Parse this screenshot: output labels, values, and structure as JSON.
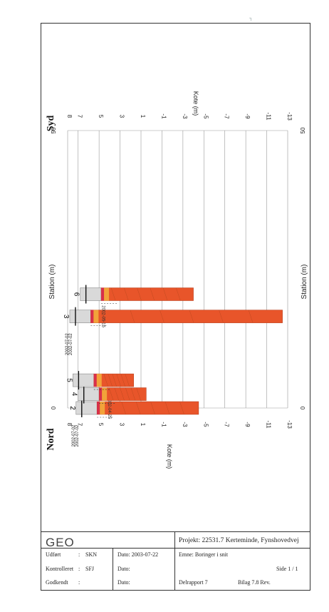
{
  "chart_data": {
    "type": "borehole-section",
    "left_label": "Nord",
    "right_label": "Syd",
    "station_axis_title": "Station (m)",
    "kote_axis_title": "Kote (m)",
    "station_ticks": [
      "0",
      "50"
    ],
    "kote_ticks": [
      "8",
      "7",
      "5",
      "3",
      "1",
      "-1",
      "-3",
      "-5",
      "-7",
      "-9",
      "-11",
      "-13"
    ],
    "boreholes": [
      {
        "id": "2",
        "station": 0.0,
        "top_kote": 7.2,
        "bottom_kote": -4.5,
        "dates": [
          "2002-07-02",
          "2002-07-02"
        ],
        "label": "2002-04-25"
      },
      {
        "id": "4",
        "station": 2.5,
        "top_kote": 7.0,
        "bottom_kote": 0.5
      },
      {
        "id": "5",
        "station": 5.0,
        "top_kote": 7.5,
        "bottom_kote": 1.7
      },
      {
        "id": "3",
        "station": 16.5,
        "top_kote": 7.8,
        "bottom_kote": -12.5,
        "dates": [
          "2002-07-02",
          "2002-07-02"
        ],
        "label": "2002-05-15"
      },
      {
        "id": "6",
        "station": 20.5,
        "top_kote": 6.8,
        "bottom_kote": -4.0
      }
    ]
  },
  "title_block": {
    "logo": "GEO",
    "project": "Projekt: 22531.7 Kerteminde, Fynshovedvej",
    "rows": [
      {
        "label": "Udført",
        "sep": ":",
        "value": "SKN",
        "date_label": "Dato: 2003-07-22",
        "subject": "Emne: Boringer i snit",
        "extra": ""
      },
      {
        "label": "Kontrolleret",
        "sep": ":",
        "value": "SFJ",
        "date_label": "Dato:",
        "subject": "",
        "extra": "Side 1 / 1"
      },
      {
        "label": "Godkendt",
        "sep": ":",
        "value": "",
        "date_label": "Dato:",
        "subject": "Delrapport  7",
        "extra": "Bilag  7.8      Rev."
      }
    ]
  },
  "colors": {
    "clay": "#e8552a",
    "sand": "#f2a33a",
    "peat": "#d8304a",
    "fill": "#d9d9d9",
    "grid": "#999999"
  }
}
